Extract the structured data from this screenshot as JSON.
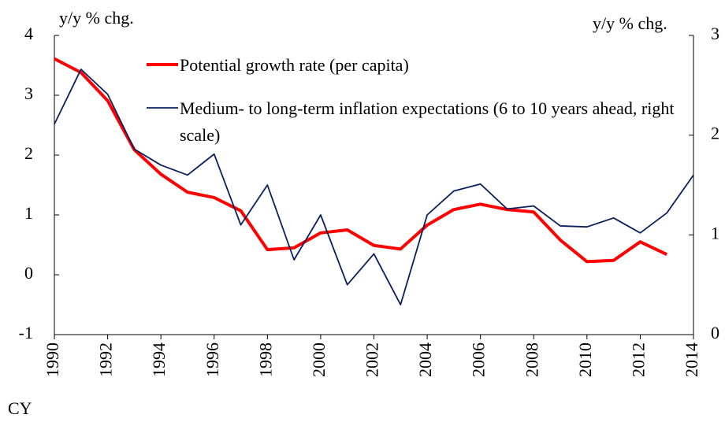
{
  "chart_data": {
    "type": "line",
    "y_label": "y/y % chg.",
    "y2_label": "y/y % chg.",
    "x_label": "CY",
    "x": [
      1990,
      1991,
      1992,
      1993,
      1994,
      1995,
      1996,
      1997,
      1998,
      1999,
      2000,
      2001,
      2002,
      2003,
      2004,
      2005,
      2006,
      2007,
      2008,
      2009,
      2010,
      2011,
      2012,
      2013,
      2014
    ],
    "series": [
      {
        "name": "Potential growth rate (per capita)",
        "color": "#ff0000",
        "axis": "y",
        "values": [
          3.61,
          3.38,
          2.91,
          2.09,
          1.68,
          1.38,
          1.29,
          1.07,
          0.42,
          0.45,
          0.7,
          0.75,
          0.49,
          0.43,
          0.83,
          1.09,
          1.18,
          1.09,
          1.05,
          0.58,
          0.22,
          0.24,
          0.55,
          0.34,
          null
        ]
      },
      {
        "name": "Medium- to long-term inflation expectations (6 to 10 years ahead, right scale)",
        "color": "#0b1f5c",
        "axis": "y2",
        "values": [
          2.11,
          2.66,
          2.41,
          1.86,
          1.7,
          1.6,
          1.81,
          1.1,
          1.5,
          0.75,
          1.2,
          0.5,
          0.81,
          0.3,
          1.2,
          1.44,
          1.51,
          1.26,
          1.29,
          1.09,
          1.08,
          1.17,
          1.02,
          1.22,
          1.6
        ]
      }
    ],
    "xlim": [
      1990,
      2014
    ],
    "xticks": [
      1990,
      1992,
      1994,
      1996,
      1998,
      2000,
      2002,
      2004,
      2006,
      2008,
      2010,
      2012,
      2014
    ],
    "ylim": [
      -1,
      4
    ],
    "yticks": [
      -1,
      0,
      1,
      2,
      3,
      4
    ],
    "y2lim": [
      0,
      3
    ],
    "y2ticks": [
      0,
      1,
      2,
      3
    ]
  }
}
